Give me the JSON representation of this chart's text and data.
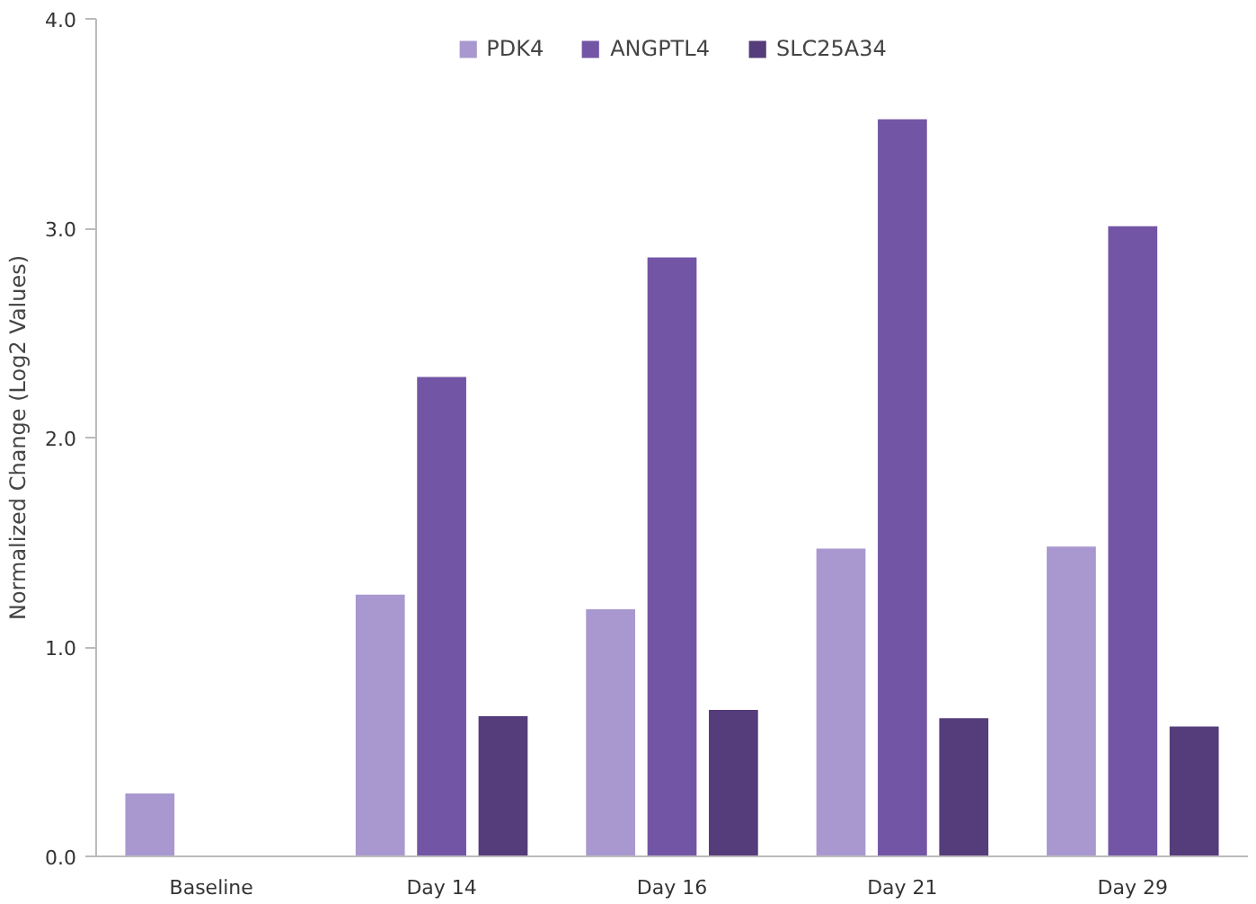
{
  "chart_data": {
    "type": "bar",
    "ylabel": "Normalized Change (Log2 Values)",
    "categories": [
      "Baseline",
      "Day 14",
      "Day 16",
      "Day 21",
      "Day 29"
    ],
    "series": [
      {
        "name": "PDK4",
        "color": "#a898cf",
        "values": [
          0.3,
          1.25,
          1.18,
          1.47,
          1.48
        ]
      },
      {
        "name": "ANGPTL4",
        "color": "#7355a5",
        "values": [
          null,
          2.29,
          2.86,
          3.52,
          3.01
        ]
      },
      {
        "name": "SLC25A34",
        "color": "#553c7a",
        "values": [
          null,
          0.67,
          0.7,
          0.66,
          0.62
        ]
      }
    ],
    "ylim": [
      0,
      4
    ],
    "yticks": [
      {
        "value": 0,
        "label": "0.0"
      },
      {
        "value": 1,
        "label": "1.0"
      },
      {
        "value": 2,
        "label": "2.0"
      },
      {
        "value": 3,
        "label": "3.0"
      },
      {
        "value": 4,
        "label": "4.0"
      }
    ],
    "grid": false,
    "legend": "top"
  }
}
